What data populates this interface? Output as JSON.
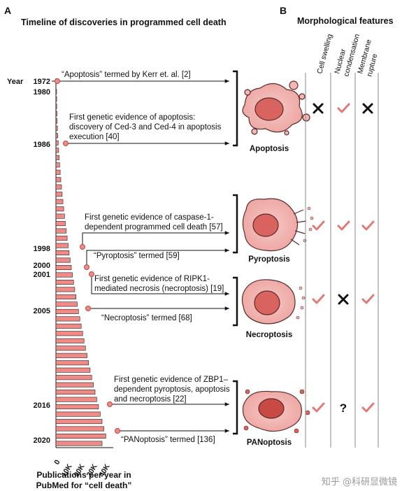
{
  "panel_a": {
    "letter": "A",
    "title": "Timeline of discoveries in programmed cell death",
    "year_label": "Year",
    "years": [
      "1972",
      "1980",
      "1986",
      "1998",
      "2000",
      "2001",
      "2005",
      "2016",
      "2020"
    ],
    "events": [
      {
        "lines": [
          "“Apoptosis” termed by Kerr et. al. [2]"
        ]
      },
      {
        "lines": [
          "First genetic evidence of apoptosis:",
          "discovery of Ced-3 and Ced-4 in apoptosis",
          "execution [40]"
        ]
      },
      {
        "lines": [
          "First genetic evidence of caspase-1-",
          "dependent programmed cell death [57]"
        ]
      },
      {
        "lines": [
          "“Pyroptosis” termed [59]"
        ]
      },
      {
        "lines": [
          "First genetic evidence of RIPK1-",
          "mediated necrosis (necroptosis) [19]"
        ]
      },
      {
        "lines": [
          "“Necroptosis” termed [68]"
        ]
      },
      {
        "lines": [
          "First genetic evidence of ZBP1–",
          "dependent pyroptosis, apoptosis",
          "and necroptosis [22]"
        ]
      },
      {
        "lines": [
          "“PANoptosis” termed [136]"
        ]
      }
    ],
    "cell_types": [
      "Apoptosis",
      "Pyroptosis",
      "Necroptosis",
      "PANoptosis"
    ],
    "x_ticks": [
      "0",
      "10K",
      "20K",
      "30K",
      "40K"
    ],
    "x_label_lines": [
      "Publications per year in",
      "PubMed for “cell death”"
    ],
    "bar_color": "#f08a87",
    "bar_stroke": "#222222"
  },
  "panel_b": {
    "letter": "B",
    "title": "Morphological features",
    "columns": [
      [
        "Cell swelling"
      ],
      [
        "Nuclear",
        "condensation"
      ],
      [
        "Membrane",
        "rupture"
      ]
    ],
    "rows": [
      [
        "cross-icon",
        "check-icon",
        "cross-icon"
      ],
      [
        "check-icon",
        "check-icon",
        "check-icon"
      ],
      [
        "check-icon",
        "cross-icon",
        "check-icon"
      ],
      [
        "check-icon",
        "question-icon",
        "check-icon"
      ]
    ],
    "question_mark": "?",
    "check_color": "#e07a77"
  },
  "watermark": "知乎 @科研显微镜"
}
